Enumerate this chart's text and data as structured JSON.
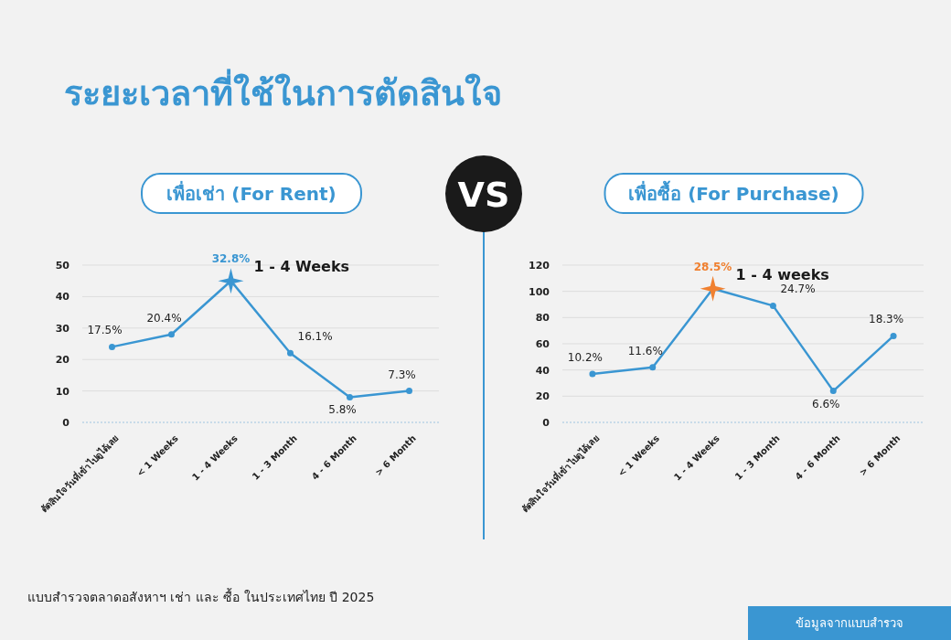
{
  "chart_data": [
    {
      "type": "other",
      "title": "ระยะเวลาที่ใช้ในการตัดสินใจ",
      "annotations": [
        "VS",
        "แบบสำรวจตลาดอสังหาฯ เช่า และ ซื้อ ในประเทศไทย ปี 2025",
        "ข้อมูลจากแบบสำรวจ"
      ]
    },
    {
      "type": "line",
      "title": "เพื่อเช่า (For Rent)",
      "categories": [
        "ตัดสินใจวันที่เข้าไปดูได้เลย",
        "< 1 Weeks",
        "1 - 4 Weeks",
        "1 - 3 Month",
        "4 - 6 Month",
        "> 6 Month"
      ],
      "ylim": [
        0,
        50
      ],
      "yticks": [
        0,
        10,
        20,
        30,
        40,
        50
      ],
      "grid": "y",
      "marker": "circle",
      "line_style": "solid",
      "series": [
        {
          "color": "#3a96d2",
          "values": [
            24,
            28,
            45,
            22,
            8,
            10
          ]
        },
        {
          "type": "scatter",
          "marker": "star",
          "color": "#3a96d2",
          "x": [
            "1 - 4 Weeks"
          ],
          "values": [
            45
          ]
        }
      ],
      "annotations": [
        {
          "text": "17.5%",
          "x": "ตัดสินใจวันที่เข้าไปดูได้เลย",
          "y": 24
        },
        {
          "text": "20.4%",
          "x": "< 1 Weeks",
          "y": 28
        },
        {
          "text": "32.8%",
          "x": "1 - 4 Weeks",
          "y": 45
        },
        {
          "text": "16.1%",
          "x": "1 - 3 Month",
          "y": 22
        },
        {
          "text": "5.8%",
          "x": "4 - 6 Month",
          "y": 8
        },
        {
          "text": "7.3%",
          "x": "> 6 Month",
          "y": 10
        },
        {
          "text": "1 - 4 Weeks",
          "x": "1 - 4 Weeks",
          "y": 45
        }
      ]
    },
    {
      "type": "line",
      "title": "เพื่อซื้อ (For Purchase)",
      "categories": [
        "ตัดสินใจวันที่เข้าไปดูได้เลย",
        "< 1 Weeks",
        "1 - 4 Weeks",
        "1 - 3 Month",
        "4 - 6 Month",
        "> 6 Month"
      ],
      "ylim": [
        0,
        120
      ],
      "yticks": [
        0,
        20,
        40,
        60,
        80,
        100,
        120
      ],
      "grid": "y",
      "marker": "circle",
      "line_style": "solid",
      "series": [
        {
          "color": "#3a96d2",
          "values": [
            37,
            42,
            102,
            89,
            24,
            66
          ]
        },
        {
          "type": "scatter",
          "marker": "star",
          "color": "#f08030",
          "x": [
            "1 - 4 Weeks"
          ],
          "values": [
            102
          ]
        }
      ],
      "annotations": [
        {
          "text": "10.2%",
          "x": "ตัดสินใจวันที่เข้าไปดูได้เลย",
          "y": 37
        },
        {
          "text": "11.6%",
          "x": "< 1 Weeks",
          "y": 42
        },
        {
          "text": "28.5%",
          "x": "1 - 4 Weeks",
          "y": 102
        },
        {
          "text": "24.7%",
          "x": "1 - 3 Month",
          "y": 89
        },
        {
          "text": "6.6%",
          "x": "4 - 6 Month",
          "y": 24
        },
        {
          "text": "18.3%",
          "x": "> 6 Month",
          "y": 66
        },
        {
          "text": "1 - 4 weeks",
          "x": "1 - 4 Weeks",
          "y": 102
        }
      ]
    }
  ]
}
